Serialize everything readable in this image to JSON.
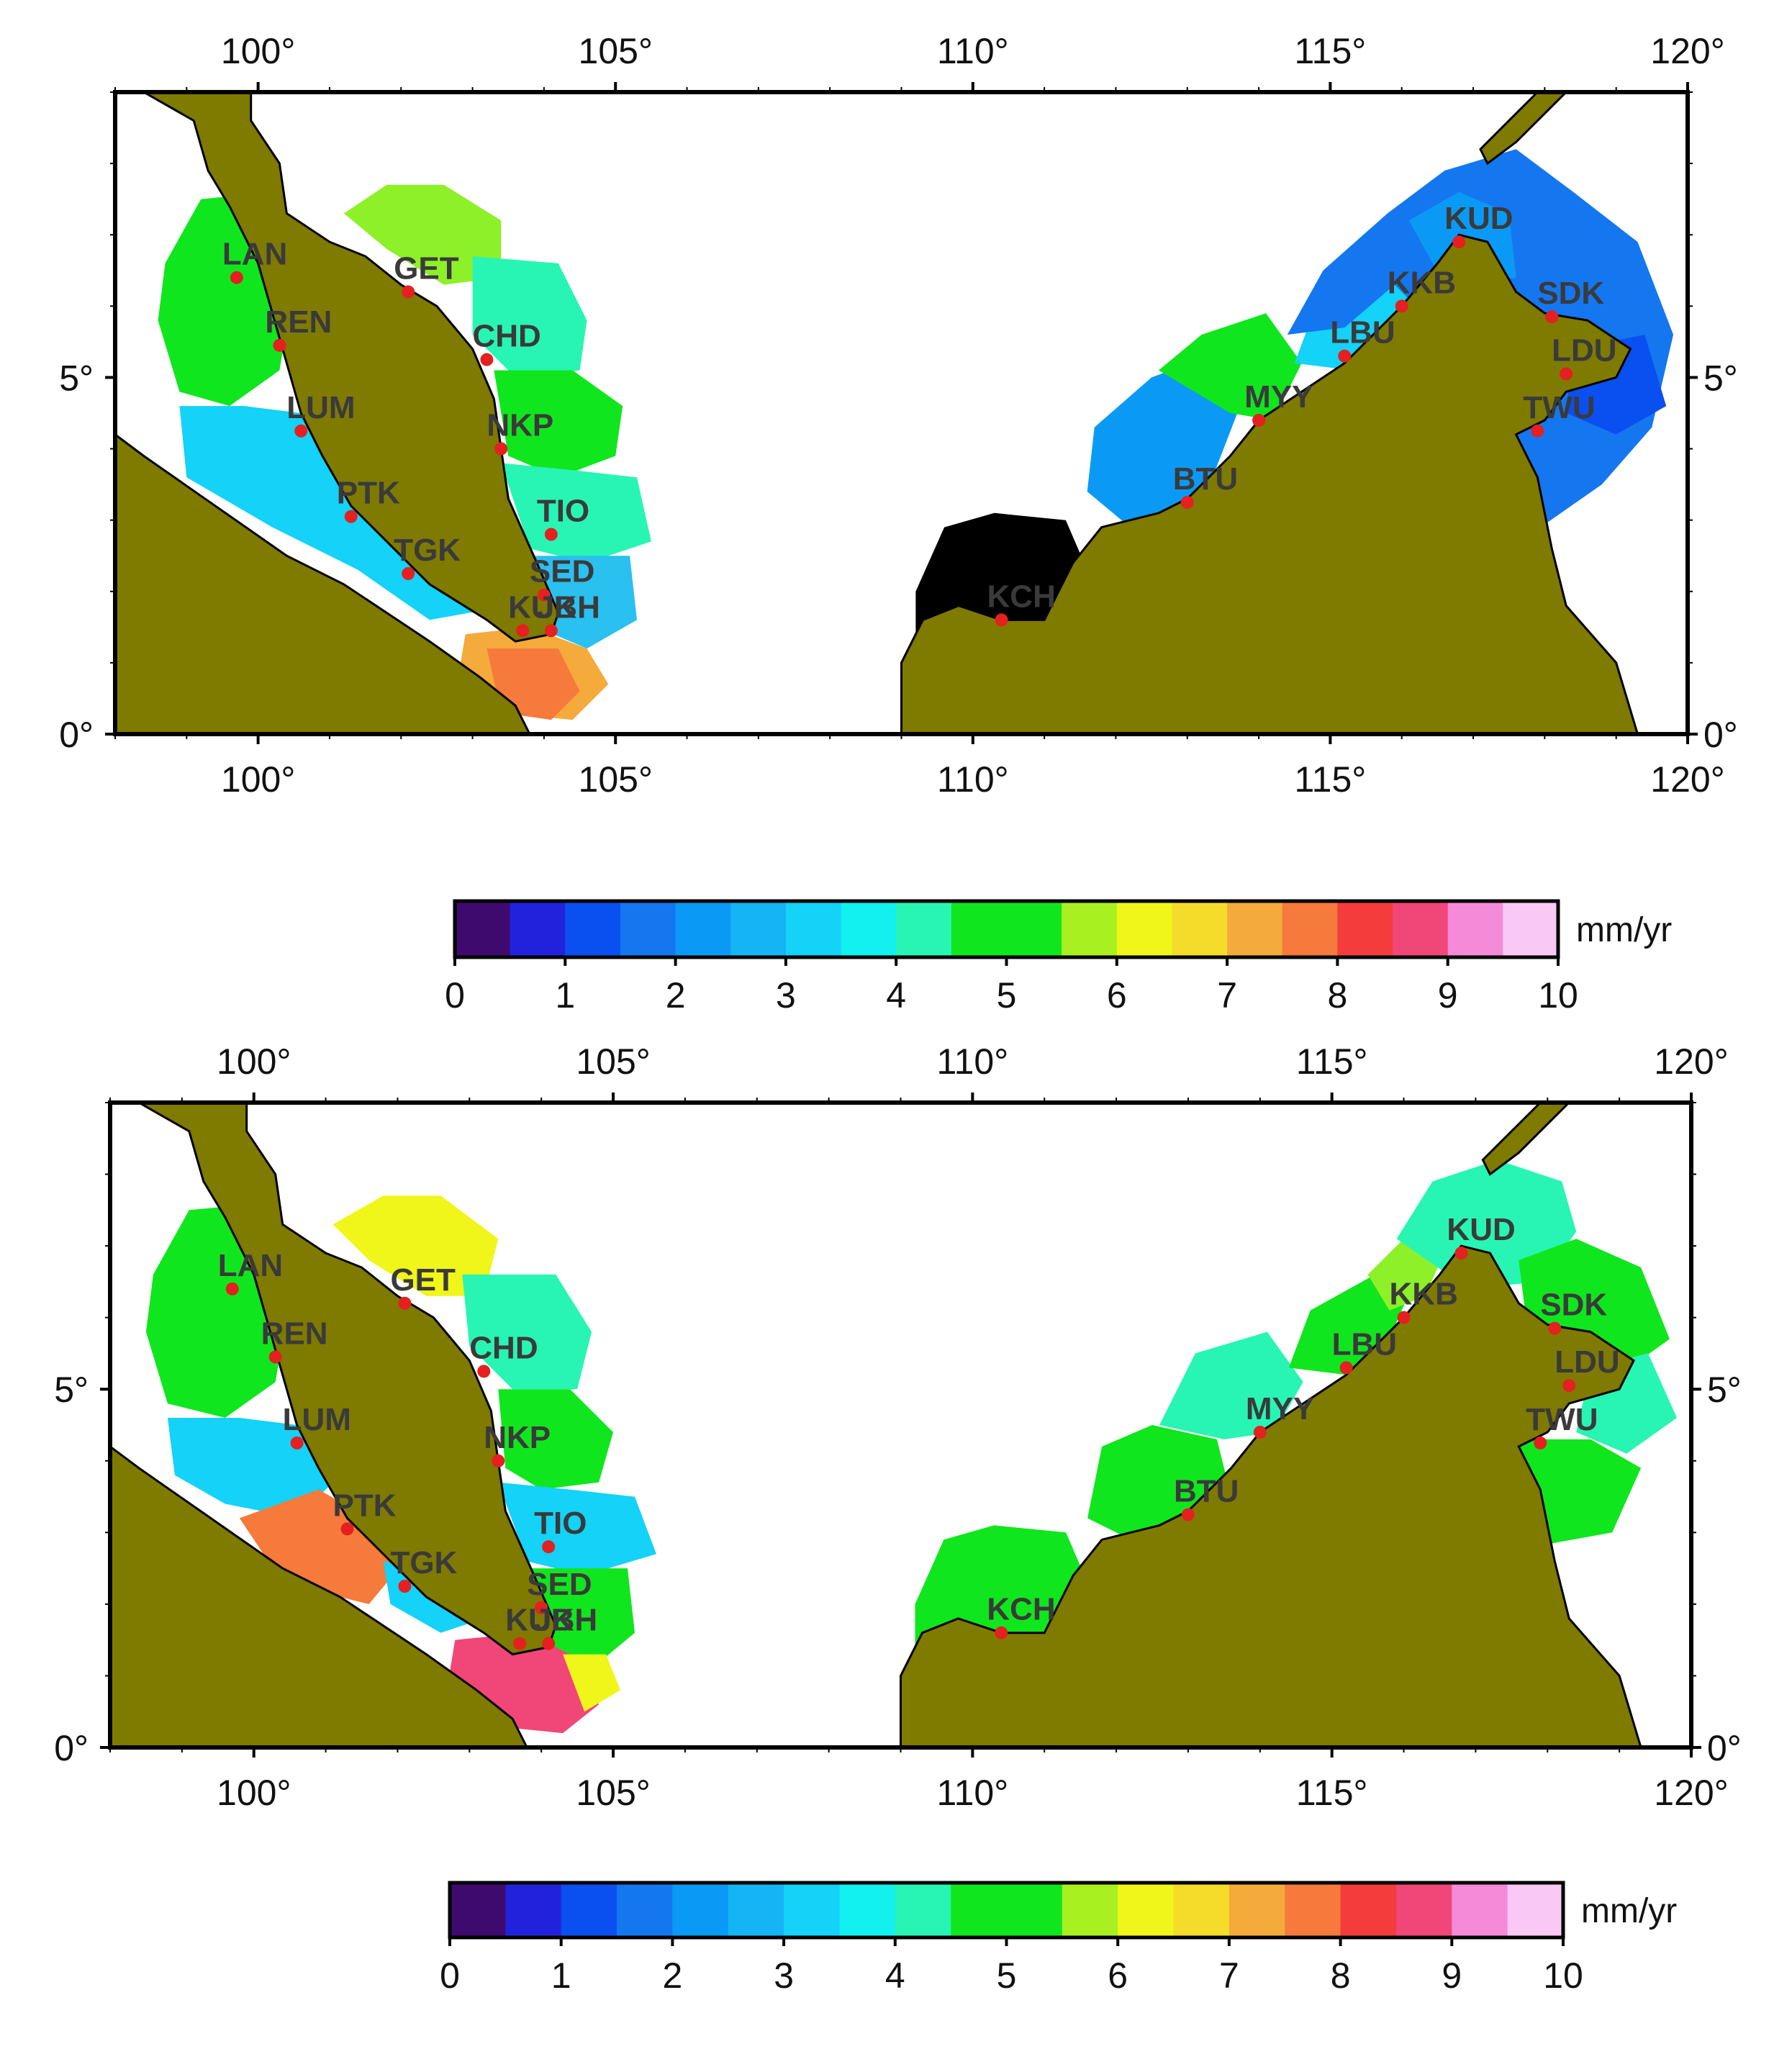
{
  "lon_labels": [
    "100°",
    "105°",
    "110°",
    "115°",
    "120°"
  ],
  "lat_labels": [
    "0°",
    "5°"
  ],
  "colorbar": {
    "unit": "mm/yr",
    "tick_labels": [
      "0",
      "1",
      "2",
      "3",
      "4",
      "5",
      "6",
      "7",
      "8",
      "9",
      "10"
    ],
    "colors": [
      "#3f0a6e",
      "#2222dd",
      "#0a50f0",
      "#1477f0",
      "#0a9af5",
      "#14b4f5",
      "#14d2f8",
      "#12f0f0",
      "#28f5b4",
      "#10e61e",
      "#10e61e",
      "#a8f020",
      "#f0f51a",
      "#f5dc2a",
      "#f5aa3c",
      "#f57a3c",
      "#f53c3c",
      "#f04678",
      "#f58ad8",
      "#fac8f5"
    ]
  },
  "panels": [
    {
      "id": "top",
      "stations": [
        {
          "code": "LAN",
          "lon": 99.7,
          "lat": 6.4
        },
        {
          "code": "REN",
          "lon": 100.3,
          "lat": 5.45
        },
        {
          "code": "GET",
          "lon": 102.1,
          "lat": 6.2
        },
        {
          "code": "CHD",
          "lon": 103.2,
          "lat": 5.25
        },
        {
          "code": "LUM",
          "lon": 100.6,
          "lat": 4.25
        },
        {
          "code": "NKP",
          "lon": 103.4,
          "lat": 4.0
        },
        {
          "code": "PTK",
          "lon": 101.3,
          "lat": 3.05
        },
        {
          "code": "TIO",
          "lon": 104.1,
          "lat": 2.8
        },
        {
          "code": "TGK",
          "lon": 102.1,
          "lat": 2.25
        },
        {
          "code": "SED",
          "lon": 104.0,
          "lat": 1.95
        },
        {
          "code": "KUK",
          "lon": 103.7,
          "lat": 1.45
        },
        {
          "code": "JBH",
          "lon": 104.1,
          "lat": 1.45
        },
        {
          "code": "KCH",
          "lon": 110.4,
          "lat": 1.6
        },
        {
          "code": "BTU",
          "lon": 113.0,
          "lat": 3.25
        },
        {
          "code": "MYY",
          "lon": 114.0,
          "lat": 4.4
        },
        {
          "code": "LBU",
          "lon": 115.2,
          "lat": 5.3
        },
        {
          "code": "KKB",
          "lon": 116.0,
          "lat": 6.0
        },
        {
          "code": "KUD",
          "lon": 116.8,
          "lat": 6.9
        },
        {
          "code": "SDK",
          "lon": 118.1,
          "lat": 5.85
        },
        {
          "code": "LDU",
          "lon": 118.3,
          "lat": 5.05
        },
        {
          "code": "TWU",
          "lon": 117.9,
          "lat": 4.25
        }
      ]
    },
    {
      "id": "bottom",
      "stations": [
        {
          "code": "LAN",
          "lon": 99.7,
          "lat": 6.4
        },
        {
          "code": "REN",
          "lon": 100.3,
          "lat": 5.45
        },
        {
          "code": "GET",
          "lon": 102.1,
          "lat": 6.2
        },
        {
          "code": "CHD",
          "lon": 103.2,
          "lat": 5.25
        },
        {
          "code": "LUM",
          "lon": 100.6,
          "lat": 4.25
        },
        {
          "code": "NKP",
          "lon": 103.4,
          "lat": 4.0
        },
        {
          "code": "PTK",
          "lon": 101.3,
          "lat": 3.05
        },
        {
          "code": "TIO",
          "lon": 104.1,
          "lat": 2.8
        },
        {
          "code": "TGK",
          "lon": 102.1,
          "lat": 2.25
        },
        {
          "code": "SED",
          "lon": 104.0,
          "lat": 1.95
        },
        {
          "code": "KUK",
          "lon": 103.7,
          "lat": 1.45
        },
        {
          "code": "JBH",
          "lon": 104.1,
          "lat": 1.45
        },
        {
          "code": "KCH",
          "lon": 110.4,
          "lat": 1.6
        },
        {
          "code": "BTU",
          "lon": 113.0,
          "lat": 3.25
        },
        {
          "code": "MYY",
          "lon": 114.0,
          "lat": 4.4
        },
        {
          "code": "LBU",
          "lon": 115.2,
          "lat": 5.3
        },
        {
          "code": "KKB",
          "lon": 116.0,
          "lat": 6.0
        },
        {
          "code": "KUD",
          "lon": 116.8,
          "lat": 6.9
        },
        {
          "code": "SDK",
          "lon": 118.1,
          "lat": 5.85
        },
        {
          "code": "LDU",
          "lon": 118.3,
          "lat": 5.05
        },
        {
          "code": "TWU",
          "lon": 117.9,
          "lat": 4.25
        }
      ]
    }
  ],
  "colors": {
    "land": "#7f7a00",
    "station_marker": "#e52020",
    "frame": "#000000"
  }
}
